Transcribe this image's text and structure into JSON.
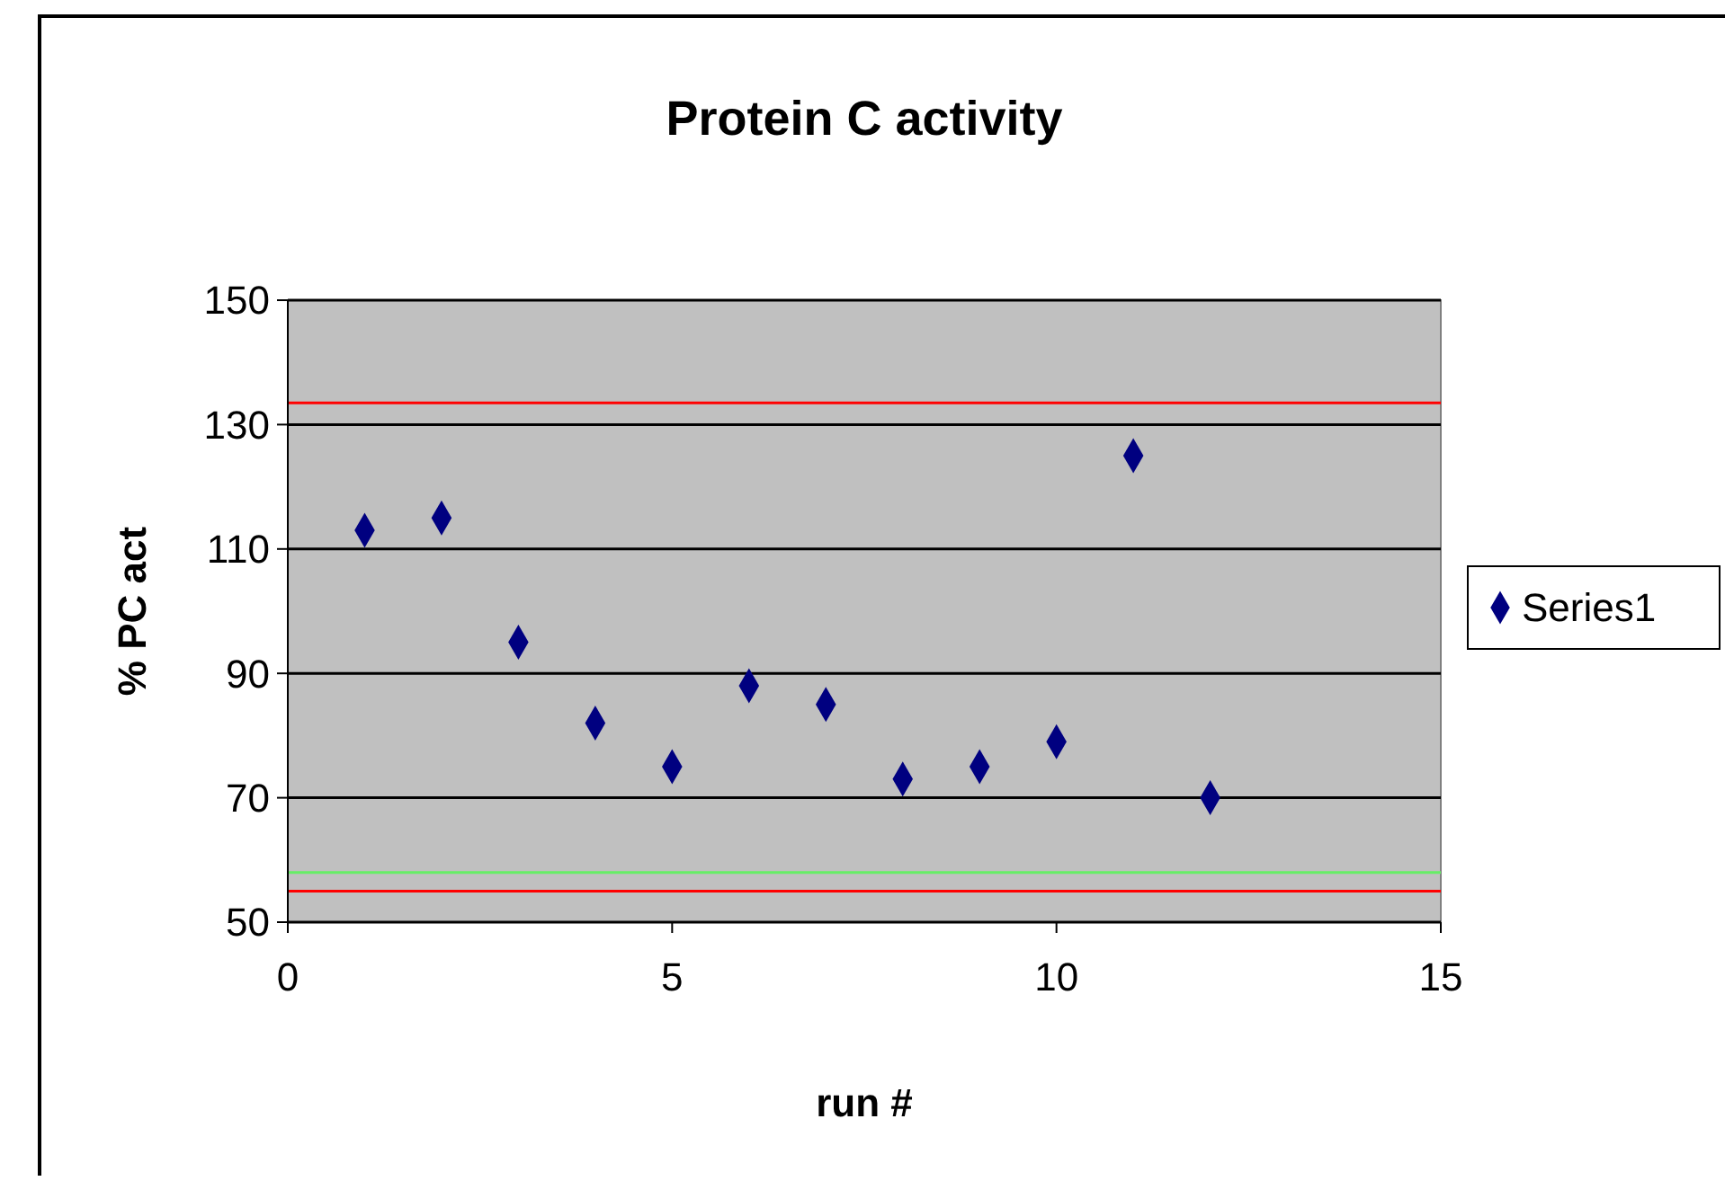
{
  "chart_data": {
    "type": "scatter",
    "title": "Protein C activity",
    "xlabel": "run #",
    "ylabel": "% PC act",
    "x": [
      1,
      2,
      3,
      4,
      5,
      6,
      7,
      8,
      9,
      10,
      11,
      12
    ],
    "series": [
      {
        "name": "Series1",
        "color": "#000080",
        "values": [
          113,
          115,
          95,
          82,
          75,
          88,
          85,
          73,
          75,
          79,
          125,
          70
        ]
      }
    ],
    "xlim": [
      0,
      15
    ],
    "xticks": [
      0,
      5,
      10,
      15
    ],
    "ylim": [
      50,
      150
    ],
    "yticks": [
      50,
      70,
      90,
      110,
      130,
      150
    ],
    "grid": "y",
    "legend": "right",
    "marker": "diamond",
    "ref_lines": [
      {
        "axis": "y",
        "value": 133.5,
        "color": "#ff0000"
      },
      {
        "axis": "y",
        "value": 55,
        "color": "#ff0000"
      },
      {
        "axis": "y",
        "value": 58,
        "color": "#66ee66"
      }
    ]
  }
}
